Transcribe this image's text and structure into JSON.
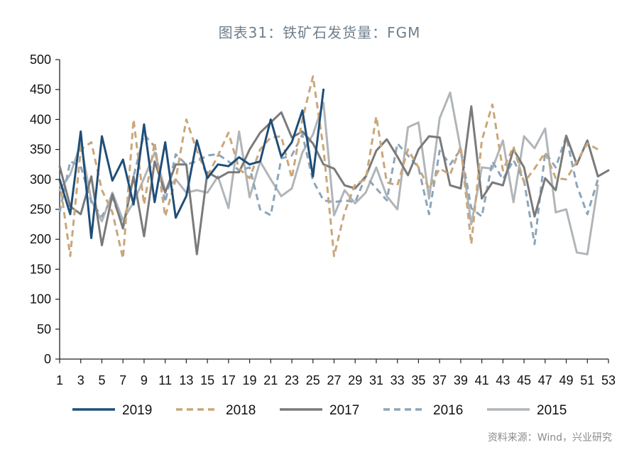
{
  "chart_data": {
    "type": "line",
    "title": "图表31：铁矿石发货量：FGM",
    "xlabel": "",
    "ylabel": "",
    "xlim": [
      1,
      53
    ],
    "ylim": [
      0,
      500
    ],
    "x_ticks": [
      1,
      3,
      5,
      7,
      9,
      11,
      13,
      15,
      17,
      19,
      21,
      23,
      25,
      27,
      29,
      31,
      33,
      35,
      37,
      39,
      41,
      43,
      45,
      47,
      49,
      51,
      53
    ],
    "y_ticks": [
      0,
      50,
      100,
      150,
      200,
      250,
      300,
      350,
      400,
      450,
      500
    ],
    "grid": false,
    "legend_position": "bottom",
    "series": [
      {
        "name": "2019",
        "color": "#1f4e79",
        "dash": "solid",
        "x": [
          1,
          2,
          3,
          4,
          5,
          6,
          7,
          8,
          9,
          10,
          11,
          12,
          13,
          14,
          15,
          16,
          17,
          18,
          19,
          20,
          21,
          22,
          23,
          24,
          25,
          26
        ],
        "values": [
          300,
          242,
          380,
          202,
          372,
          298,
          333,
          258,
          392,
          262,
          362,
          236,
          272,
          365,
          302,
          325,
          322,
          337,
          325,
          330,
          400,
          338,
          362,
          415,
          305,
          450
        ]
      },
      {
        "name": "2018",
        "color": "#c9a77a",
        "dash": "dashed",
        "x": [
          1,
          2,
          3,
          4,
          5,
          6,
          7,
          8,
          9,
          10,
          11,
          12,
          13,
          14,
          15,
          16,
          17,
          18,
          19,
          20,
          21,
          22,
          23,
          24,
          25,
          26,
          27,
          28,
          29,
          30,
          31,
          32,
          33,
          34,
          35,
          36,
          37,
          38,
          39,
          40,
          41,
          42,
          43,
          44,
          45,
          46,
          47,
          48,
          49,
          50,
          51,
          52
        ],
        "values": [
          298,
          172,
          350,
          362,
          282,
          245,
          168,
          400,
          258,
          362,
          238,
          300,
          400,
          348,
          305,
          340,
          378,
          318,
          302,
          350,
          370,
          372,
          302,
          400,
          472,
          352,
          172,
          245,
          292,
          300,
          405,
          295,
          290,
          350,
          320,
          285,
          318,
          308,
          355,
          192,
          365,
          425,
          315,
          355,
          295,
          318,
          345,
          302,
          300,
          330,
          360,
          350
        ]
      },
      {
        "name": "2017",
        "color": "#7a7a7a",
        "dash": "solid",
        "x": [
          1,
          2,
          3,
          4,
          5,
          6,
          7,
          8,
          9,
          10,
          11,
          12,
          13,
          14,
          15,
          16,
          17,
          18,
          19,
          20,
          21,
          22,
          23,
          24,
          25,
          26,
          27,
          28,
          29,
          30,
          31,
          32,
          33,
          34,
          35,
          36,
          37,
          38,
          39,
          40,
          41,
          42,
          43,
          44,
          45,
          46,
          47,
          48,
          49,
          50,
          51,
          52,
          53
        ],
        "values": [
          322,
          255,
          242,
          305,
          190,
          275,
          218,
          305,
          205,
          330,
          278,
          325,
          325,
          175,
          312,
          302,
          312,
          312,
          350,
          378,
          395,
          412,
          370,
          380,
          360,
          325,
          318,
          290,
          285,
          305,
          348,
          367,
          338,
          307,
          350,
          372,
          370,
          290,
          285,
          422,
          268,
          295,
          290,
          350,
          320,
          238,
          302,
          282,
          373,
          325,
          365,
          305,
          315
        ]
      },
      {
        "name": "2016",
        "color": "#8ca5ba",
        "dash": "dashed",
        "x": [
          1,
          2,
          3,
          4,
          5,
          6,
          7,
          8,
          9,
          10,
          11,
          12,
          13,
          14,
          15,
          16,
          17,
          18,
          19,
          20,
          21,
          22,
          23,
          24,
          25,
          26,
          27,
          28,
          29,
          30,
          31,
          32,
          33,
          34,
          35,
          36,
          37,
          38,
          39,
          40,
          41,
          42,
          43,
          44,
          45,
          46,
          47,
          48,
          49,
          50,
          51,
          52
        ],
        "values": [
          245,
          330,
          322,
          262,
          238,
          270,
          222,
          305,
          375,
          355,
          262,
          342,
          325,
          330,
          340,
          342,
          330,
          315,
          320,
          250,
          240,
          335,
          340,
          375,
          298,
          265,
          262,
          265,
          262,
          305,
          285,
          265,
          360,
          340,
          320,
          242,
          348,
          325,
          350,
          252,
          238,
          330,
          300,
          332,
          298,
          192,
          345,
          320,
          372,
          290,
          242,
          300
        ]
      },
      {
        "name": "2015",
        "color": "#b0b5b9",
        "dash": "solid",
        "x": [
          1,
          2,
          3,
          4,
          5,
          6,
          7,
          8,
          9,
          10,
          11,
          12,
          13,
          14,
          15,
          16,
          17,
          18,
          19,
          20,
          21,
          22,
          23,
          24,
          25,
          26,
          27,
          28,
          29,
          30,
          31,
          32,
          33,
          34,
          35,
          36,
          37,
          38,
          39,
          40,
          41,
          42,
          43,
          44,
          45,
          46,
          47,
          48,
          49,
          50,
          51,
          52
        ],
        "values": [
          282,
          308,
          360,
          265,
          230,
          278,
          232,
          262,
          302,
          345,
          282,
          300,
          278,
          282,
          278,
          305,
          252,
          380,
          270,
          330,
          300,
          272,
          285,
          345,
          375,
          428,
          240,
          282,
          260,
          278,
          320,
          272,
          250,
          387,
          395,
          268,
          402,
          445,
          350,
          225,
          320,
          318,
          365,
          262,
          372,
          352,
          385,
          245,
          250,
          178,
          175,
          290
        ]
      }
    ]
  },
  "source_note": "资料来源：Wind，兴业研究"
}
